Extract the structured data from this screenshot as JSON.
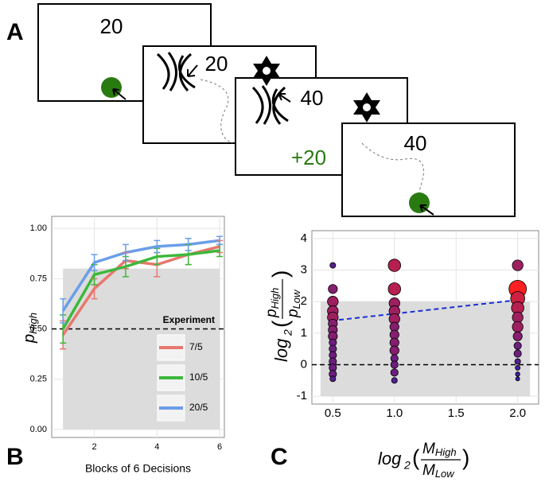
{
  "panel_labels": [
    "A",
    "B",
    "C"
  ],
  "screens": [
    {
      "number": "20"
    },
    {
      "number": "20"
    },
    {
      "number": "40",
      "feedback": "+20"
    },
    {
      "number": "40"
    }
  ],
  "chart_data": [
    {
      "type": "line",
      "xlabel": "Blocks of 6 Decisions",
      "ylabel": {
        "main": "p",
        "sub": "High"
      },
      "x": [
        1,
        2,
        3,
        4,
        5,
        6
      ],
      "xlim": [
        0.64,
        6.15
      ],
      "xticks": [
        2,
        4,
        6
      ],
      "ylim": [
        -0.04,
        1.06
      ],
      "yticks": [
        {
          "value": 0,
          "label": "0.00"
        },
        {
          "value": 0.25,
          "label": "0.25"
        },
        {
          "value": 0.5,
          "label": "0.50"
        },
        {
          "value": 0.75,
          "label": "0.75"
        },
        {
          "value": 1,
          "label": "1.00"
        }
      ],
      "grid": true,
      "shade": {
        "x": [
          1,
          6
        ],
        "y": [
          0,
          0.8
        ]
      },
      "hline": 0.5,
      "legend_title": "Experiment",
      "series": [
        {
          "name": "7/5",
          "color": "#e8776e",
          "values": [
            0.47,
            0.7,
            0.84,
            0.82,
            0.87,
            0.91
          ],
          "errors": [
            0.07,
            0.05,
            0.04,
            0.06,
            0.05,
            0.03
          ]
        },
        {
          "name": "10/5",
          "color": "#3db83d",
          "values": [
            0.5,
            0.77,
            0.81,
            0.86,
            0.87,
            0.89
          ],
          "errors": [
            0.07,
            0.05,
            0.05,
            0.04,
            0.05,
            0.03
          ]
        },
        {
          "name": "20/5",
          "color": "#6b9ee8",
          "values": [
            0.59,
            0.83,
            0.88,
            0.91,
            0.92,
            0.94
          ],
          "errors": [
            0.06,
            0.04,
            0.04,
            0.03,
            0.03,
            0.02
          ]
        }
      ]
    },
    {
      "type": "scatter",
      "xlabel": {
        "fn": "log",
        "base": "2",
        "open": "(",
        "close": ")",
        "num_main": "M",
        "num_sub": "High",
        "den_main": "M",
        "den_sub": "Low"
      },
      "ylabel": {
        "fn": "log",
        "base": "2",
        "open": "(",
        "close": ")",
        "num_main": "p",
        "num_sub": "High",
        "den_main": "p",
        "den_sub": "Low"
      },
      "xlim": [
        0.33,
        2.17
      ],
      "xticks": [
        0.5,
        {
          "value": 1,
          "label": "1.0"
        },
        1.5,
        {
          "value": 2,
          "label": "2.0"
        }
      ],
      "ylim": [
        -1.25,
        4.25
      ],
      "yticks": [
        -1,
        0,
        1,
        2,
        3,
        4
      ],
      "grid": true,
      "shade": {
        "x": [
          0.4,
          2.1
        ],
        "y": [
          -1,
          2
        ]
      },
      "hline": 0,
      "fit": {
        "x": [
          0.55,
          2.0
        ],
        "y": [
          1.42,
          2.05
        ],
        "color": "#1a2fd6"
      },
      "color_low": "#3b1e9e",
      "color_high": "#ff2020",
      "x": [
        0.5,
        0.5,
        0.5,
        0.5,
        0.5,
        0.5,
        0.5,
        0.5,
        0.5,
        0.5,
        0.5,
        0.5,
        0.5,
        0.5,
        0.5,
        1,
        1,
        1,
        1,
        1,
        1,
        1,
        1,
        1,
        1,
        1,
        1,
        1,
        2,
        2,
        2,
        2,
        2,
        2,
        2,
        2,
        2,
        2,
        2,
        2,
        2
      ],
      "y": [
        3.15,
        2.4,
        2.0,
        1.7,
        1.5,
        1.3,
        1.1,
        0.9,
        0.7,
        0.5,
        0.3,
        0.1,
        -0.1,
        -0.3,
        -0.45,
        3.15,
        2.4,
        1.95,
        1.7,
        1.45,
        1.2,
        0.95,
        0.7,
        0.45,
        0.2,
        0,
        -0.25,
        -0.5,
        3.15,
        2.4,
        2.1,
        1.8,
        1.5,
        1.2,
        0.9,
        0.6,
        0.35,
        0.1,
        -0.1,
        -0.3,
        -0.45
      ],
      "size": [
        2,
        4,
        5,
        5,
        5,
        4,
        4,
        4,
        3,
        3,
        3,
        3,
        3,
        3,
        2,
        6,
        6,
        5,
        5,
        5,
        4,
        4,
        4,
        4,
        3,
        3,
        3,
        2,
        5,
        9,
        7,
        6,
        5,
        5,
        4,
        3,
        3,
        2,
        1.5,
        1.2,
        1
      ]
    }
  ]
}
